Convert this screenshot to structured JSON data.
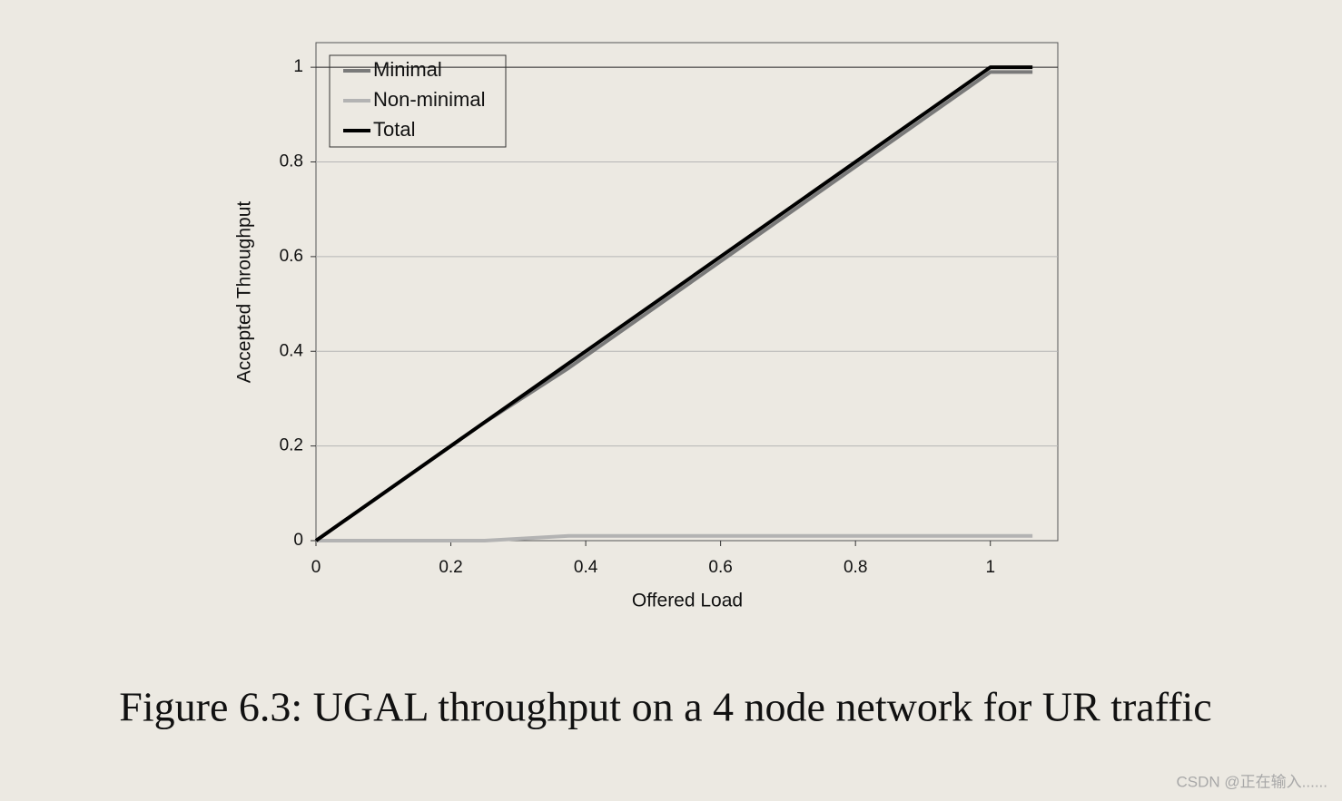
{
  "chart_data": {
    "type": "line",
    "x_label": "Offered Load",
    "y_label": "Accepted Throughput",
    "x": [
      0,
      0.25,
      0.375,
      1,
      1.0625
    ],
    "series": [
      {
        "name": "Minimal",
        "color": "#7a7a7a",
        "values": [
          0,
          0.25,
          0.365,
          0.99,
          0.99
        ]
      },
      {
        "name": "Non-minimal",
        "color": "#b3b3b3",
        "values": [
          0,
          0,
          0.01,
          0.01,
          0.01
        ]
      },
      {
        "name": "Total",
        "color": "#000000",
        "values": [
          0,
          0.25,
          0.375,
          1,
          1
        ]
      }
    ],
    "xlim": [
      0,
      1.1
    ],
    "ylim": [
      0,
      1.052
    ],
    "xticks": [
      0,
      0.2,
      0.4,
      0.6,
      0.8,
      1
    ],
    "yticks": [
      0,
      0.2,
      0.4,
      0.6,
      0.8,
      1
    ],
    "grid": true,
    "legend": "upper left"
  },
  "caption": "Figure 6.3: UGAL throughput on a 4 node network for UR traffic",
  "watermark": "CSDN @正在输入......"
}
